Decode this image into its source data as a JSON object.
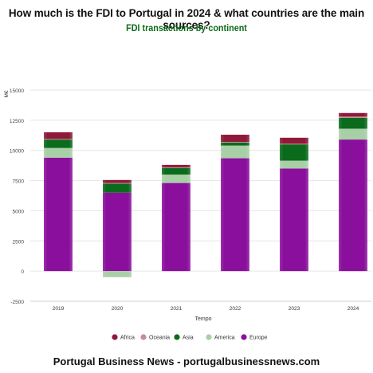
{
  "header": {
    "title": "How much is the FDI to Portugal in 2024 & what countries are the main sources?",
    "subtitle": "FDI transactions by continent"
  },
  "footer": {
    "text": "Portugal Business News - portugalbusinessnews.com"
  },
  "colors": {
    "Africa": "#8e1a3a",
    "Oceania": "#c98a9b",
    "Asia": "#0b6b1c",
    "America": "#a8cfa6",
    "Europe": "#8a0f9c"
  },
  "chart_data": {
    "type": "bar",
    "stacked": true,
    "ylabel": "M€",
    "xlabel": "Tempo",
    "ylim": [
      -2500,
      15000
    ],
    "yticks": [
      -2500,
      0,
      2500,
      5000,
      7500,
      10000,
      12500,
      15000
    ],
    "grid": true,
    "legend_position": "bottom",
    "categories": [
      "2019",
      "2020",
      "2021",
      "2022",
      "2023",
      "2024"
    ],
    "series": [
      {
        "name": "Europe",
        "values": [
          9400,
          6500,
          7300,
          9350,
          8500,
          10900
        ]
      },
      {
        "name": "America",
        "values": [
          800,
          -500,
          700,
          1050,
          650,
          900
        ]
      },
      {
        "name": "Asia",
        "values": [
          700,
          750,
          550,
          250,
          1350,
          900
        ]
      },
      {
        "name": "Oceania",
        "values": [
          50,
          50,
          50,
          50,
          50,
          100
        ]
      },
      {
        "name": "Africa",
        "values": [
          550,
          250,
          200,
          600,
          500,
          300
        ]
      }
    ],
    "legend_order": [
      "Africa",
      "Oceania",
      "Asia",
      "America",
      "Europe"
    ]
  }
}
